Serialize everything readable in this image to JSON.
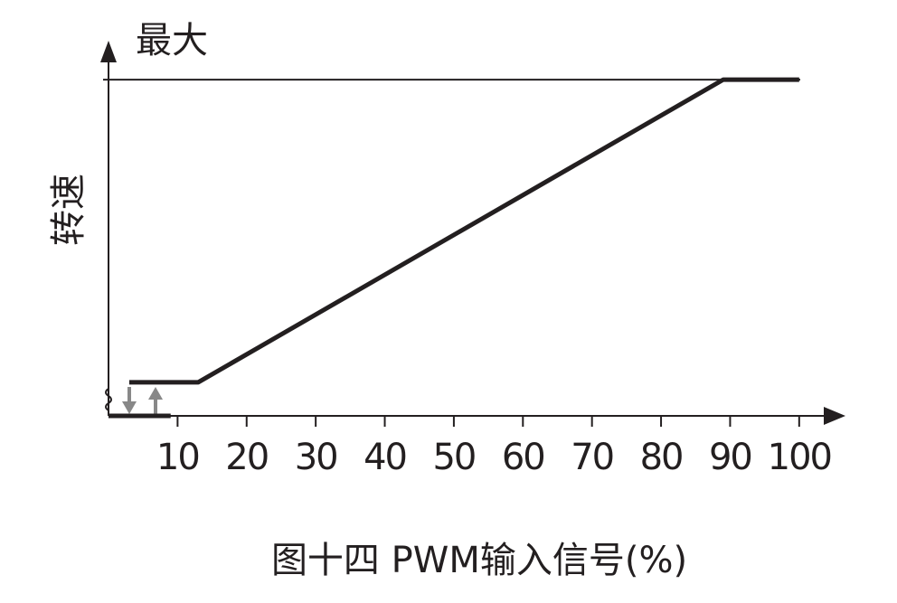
{
  "chart_data": {
    "type": "line",
    "ylabel": "转速",
    "caption": "图十四 PWM输入信号(%)",
    "x_tick_marks": true,
    "xlim": [
      0,
      106.7
    ],
    "xticks": [
      10,
      20,
      30,
      40,
      50,
      60,
      70,
      80,
      90,
      100
    ],
    "ylim": [
      0,
      111.6
    ],
    "yticks": [
      {
        "value": 100,
        "label": "最大"
      }
    ],
    "series": [
      {
        "color": "#231f20",
        "x": [
          3,
          13,
          89,
          100
        ],
        "values": [
          10,
          10,
          100,
          100
        ]
      },
      {
        "color": "#231f20",
        "x": [
          0,
          9
        ],
        "values": [
          0,
          0
        ]
      }
    ]
  }
}
